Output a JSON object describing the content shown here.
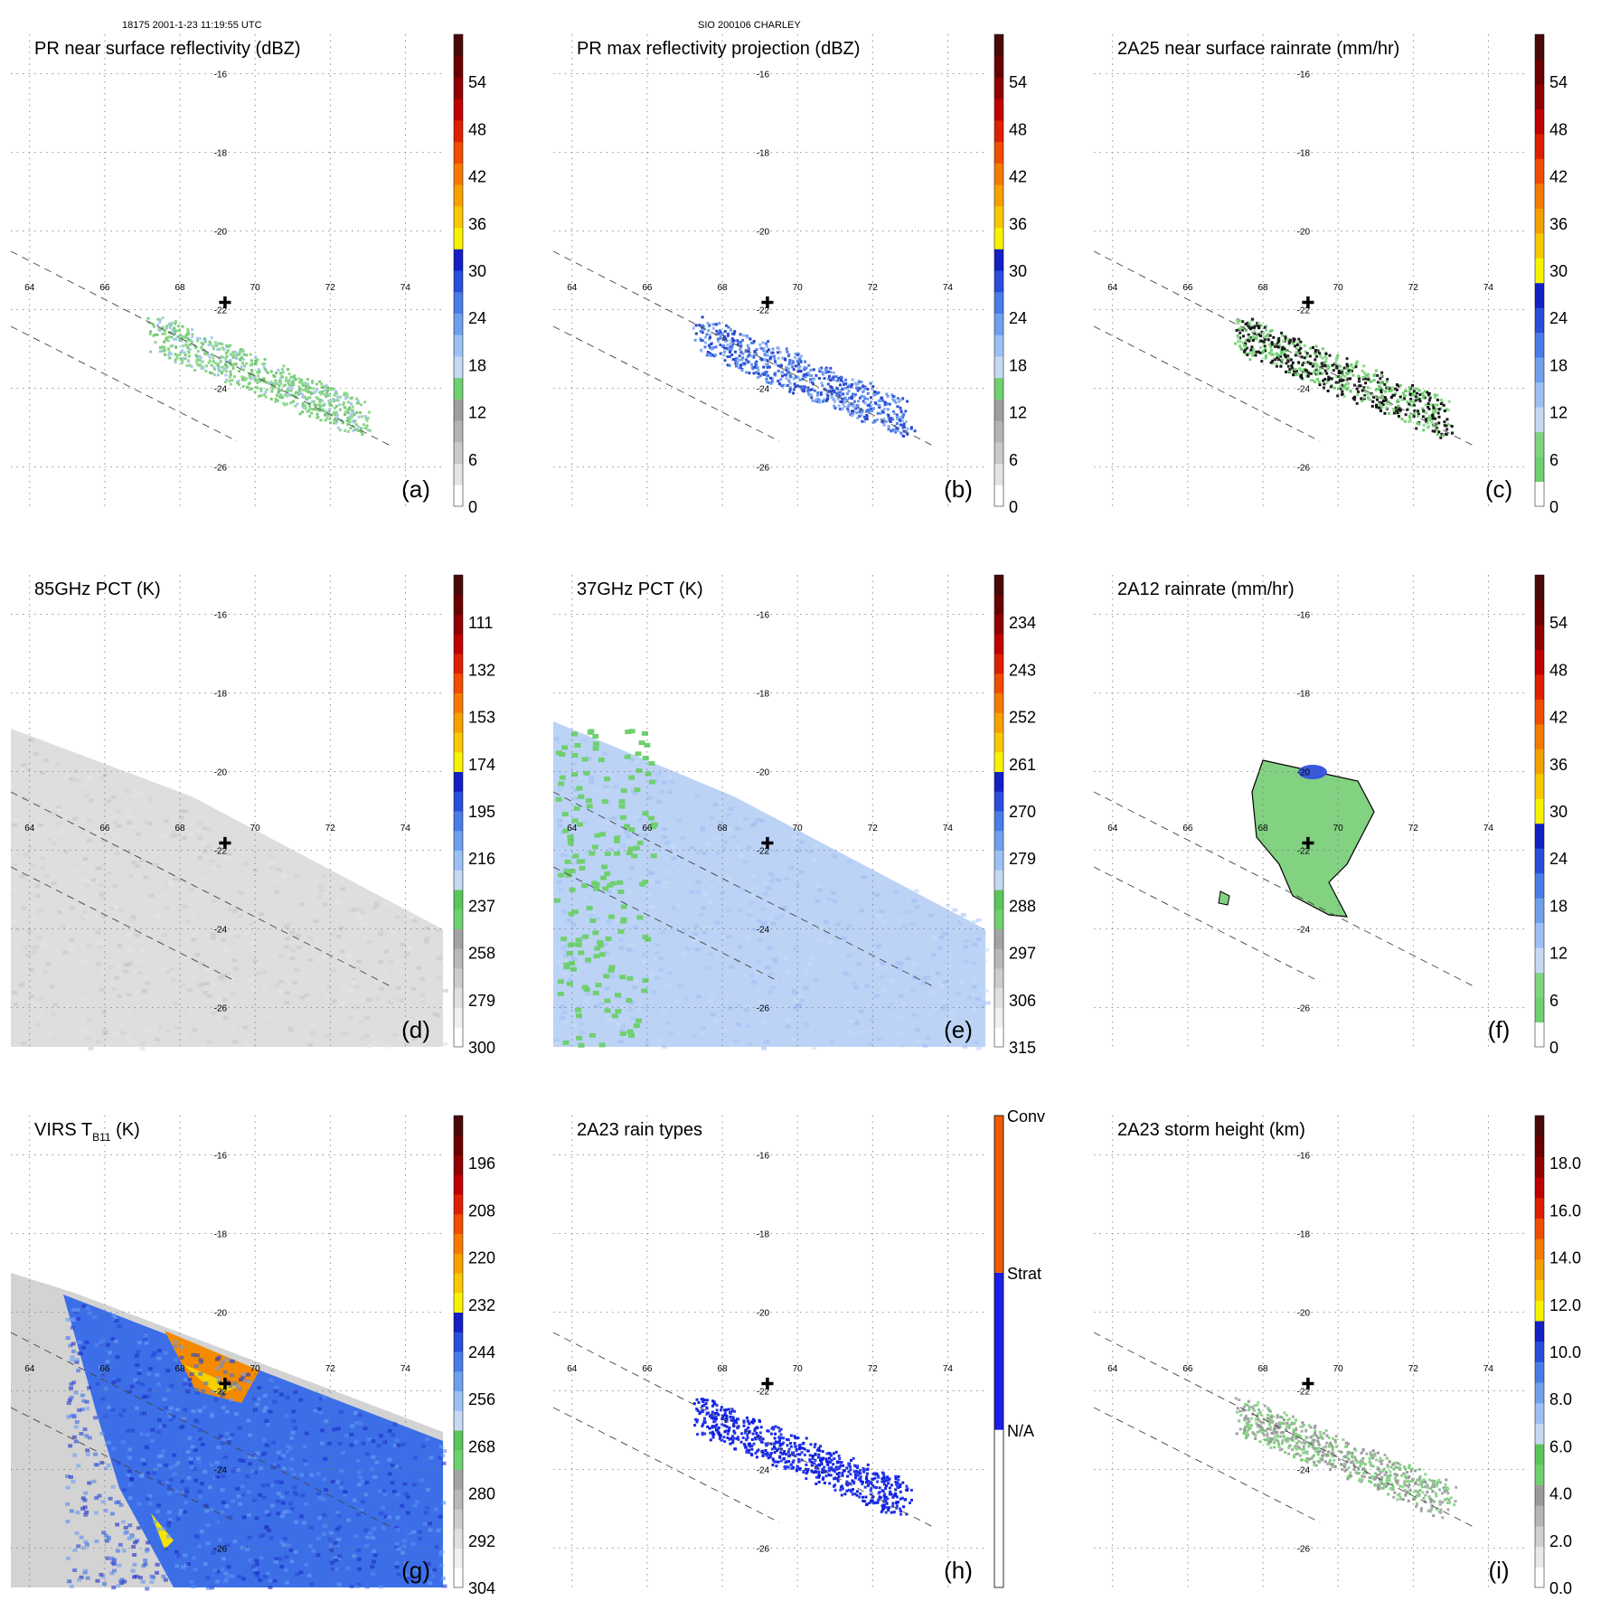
{
  "header": {
    "orbit_time": "18175 2001-1-23 11:19:55 UTC",
    "storm": "SIO 200106 CHARLEY"
  },
  "map": {
    "lon_ticks": [
      "64",
      "66",
      "68",
      "70",
      "72",
      "74"
    ],
    "lat_ticks": [
      "-16",
      "-18",
      "-20",
      "-22",
      "-24",
      "-26"
    ],
    "center_marker": "✚",
    "center_lon": 69.2,
    "center_lat": -21.8
  },
  "chart_data": [
    {
      "type": "heatmap",
      "panel": "(a)",
      "title": "PR near surface reflectivity (dBZ)",
      "colorbar_ticks": [
        "0",
        "6",
        "12",
        "18",
        "24",
        "30",
        "36",
        "42",
        "48",
        "54"
      ],
      "colorbar_range": [
        0,
        60
      ],
      "swath": "PR",
      "colors": [
        "#8fd88f",
        "#7fd07f",
        "#a8c8f0",
        "#8fd88f",
        "#77c977"
      ],
      "lat_range": [
        -27,
        -15
      ],
      "lon_range": [
        63.5,
        75
      ]
    },
    {
      "type": "heatmap",
      "panel": "(b)",
      "title": "PR max reflectivity projection (dBZ)",
      "colorbar_ticks": [
        "0",
        "6",
        "12",
        "18",
        "24",
        "30",
        "36",
        "42",
        "48",
        "54"
      ],
      "colorbar_range": [
        0,
        60
      ],
      "swath": "PR",
      "colors": [
        "#4a78e8",
        "#6a9af0",
        "#3356d8",
        "#8fb4f4",
        "#2a46c8"
      ]
    },
    {
      "type": "heatmap",
      "panel": "(c)",
      "title": "2A25 near surface rainrate (mm/hr)",
      "colorbar_ticks": [
        "0",
        "6",
        "12",
        "18",
        "24",
        "30",
        "36",
        "42",
        "48",
        "54"
      ],
      "colorbar_range": [
        0,
        60
      ],
      "swath": "PR",
      "colors": [
        "#6ccf6c",
        "#111111",
        "#8fd88f",
        "#222222"
      ]
    },
    {
      "type": "heatmap",
      "panel": "(d)",
      "title": "85GHz PCT (K)",
      "colorbar_ticks": [
        "300",
        "279",
        "258",
        "237",
        "216",
        "195",
        "174",
        "153",
        "132",
        "111"
      ],
      "colorbar_range": [
        300,
        90
      ],
      "swath": "TMI",
      "colors": [
        "#dcdcdc",
        "#cfcfcf",
        "#e6e6e6",
        "#c4c4c4"
      ]
    },
    {
      "type": "heatmap",
      "panel": "(e)",
      "title": "37GHz PCT (K)",
      "colorbar_ticks": [
        "315",
        "306",
        "297",
        "288",
        "279",
        "270",
        "261",
        "252",
        "243",
        "234"
      ],
      "colorbar_range": [
        315,
        225
      ],
      "swath": "TMI",
      "colors": [
        "#b8d2f6",
        "#a4c4f4",
        "#c8dcf8",
        "#9cbcf2"
      ]
    },
    {
      "type": "heatmap",
      "panel": "(f)",
      "title": "2A12 rainrate (mm/hr)",
      "colorbar_ticks": [
        "0",
        "6",
        "12",
        "18",
        "24",
        "30",
        "36",
        "42",
        "48",
        "54"
      ],
      "colorbar_range": [
        0,
        60
      ],
      "swath": "TMI",
      "colors": [
        "#82d282"
      ]
    },
    {
      "type": "heatmap",
      "panel": "(g)",
      "title": "VIRS T",
      "title_sub": "B11",
      "title_unit": "(K)",
      "colorbar_ticks": [
        "304",
        "292",
        "280",
        "268",
        "256",
        "244",
        "232",
        "220",
        "208",
        "196"
      ],
      "colorbar_range": [
        304,
        184
      ],
      "swath": "VIRS",
      "colors": [
        "#3a6ee8",
        "#2646d6",
        "#5a8ef0",
        "#1c2cc4",
        "#6aa0f2"
      ]
    },
    {
      "type": "heatmap",
      "panel": "(h)",
      "title": "2A23 rain types",
      "colorbar_ticks": [
        "N/A",
        "Strat",
        "Conv"
      ],
      "swath": "PR",
      "colors": [
        "#1a2ae6",
        "#0e1edc",
        "#2a3cf0"
      ]
    },
    {
      "type": "heatmap",
      "panel": "(i)",
      "title": "2A23 storm height (km)",
      "colorbar_ticks": [
        "0.0",
        "2.0",
        "4.0",
        "6.0",
        "8.0",
        "10.0",
        "12.0",
        "14.0",
        "16.0",
        "18.0"
      ],
      "colorbar_range": [
        0,
        20
      ],
      "swath": "PR",
      "colors": [
        "#9a9a9a",
        "#8fd88f",
        "#aaaaaa",
        "#7fcf7f"
      ]
    }
  ]
}
